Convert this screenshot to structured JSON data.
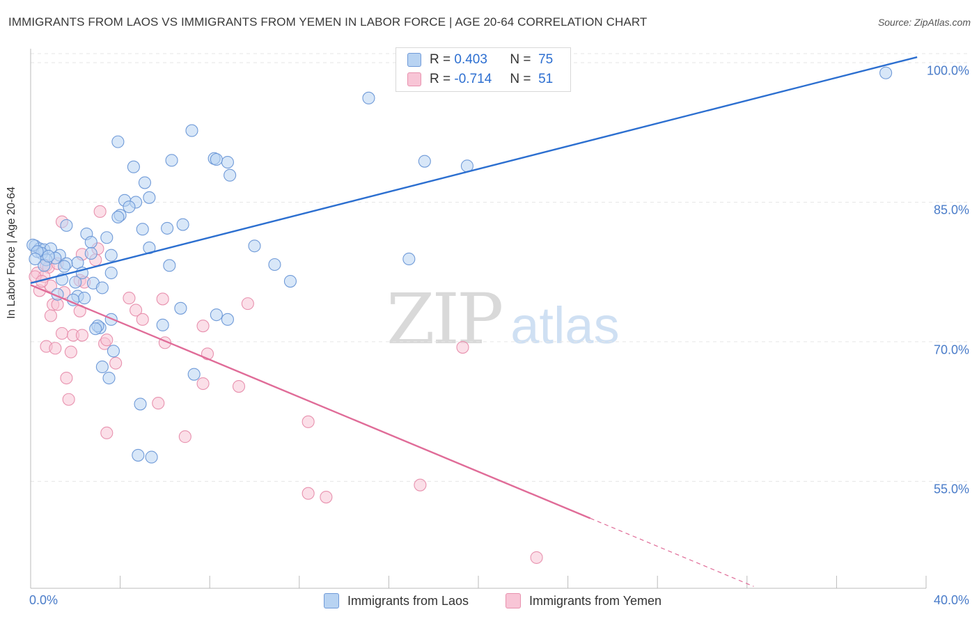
{
  "header": {
    "title": "IMMIGRANTS FROM LAOS VS IMMIGRANTS FROM YEMEN IN LABOR FORCE | AGE 20-64 CORRELATION CHART",
    "source": "Source: ZipAtlas.com"
  },
  "watermark": {
    "left": "ZIP",
    "right": "atlas"
  },
  "legend": {
    "rows": [
      {
        "r_label": "R =",
        "r_value": "0.403",
        "n_label": "N =",
        "n_value": "75"
      },
      {
        "r_label": "R =",
        "r_value": "-0.714",
        "n_label": "N =",
        "n_value": "51"
      }
    ]
  },
  "colors": {
    "blue_fill": "#b8d3f2",
    "blue_stroke": "#6f9ad8",
    "blue_line": "#2c6fd0",
    "pink_fill": "#f8c5d6",
    "pink_stroke": "#e891ae",
    "pink_line": "#e06c98",
    "grid": "#e6e6e6",
    "tick_text": "#4a7cc9"
  },
  "chart_data": {
    "type": "scatter",
    "title": "IMMIGRANTS FROM LAOS VS IMMIGRANTS FROM YEMEN IN LABOR FORCE | AGE 20-64 CORRELATION CHART",
    "xlabel": "",
    "ylabel": "In Labor Force | Age 20-64",
    "xlim": [
      0,
      40
    ],
    "ylim": [
      43.5,
      101.5
    ],
    "x_tick_labels": [
      "0.0%",
      "40.0%"
    ],
    "y_ticks": [
      55,
      70,
      85,
      100
    ],
    "y_tick_labels": [
      "55.0%",
      "70.0%",
      "85.0%",
      "100.0%"
    ],
    "grid": true,
    "legend_position": "top-center",
    "series": [
      {
        "name": "Immigrants from Laos",
        "color": "#b8d3f2",
        "trend": {
          "x": [
            0,
            39.6
          ],
          "y": [
            76.3,
            100.6
          ],
          "dashed_from": null
        },
        "points": [
          [
            38.2,
            98.9
          ],
          [
            15.1,
            96.2
          ],
          [
            7.2,
            92.7
          ],
          [
            3.9,
            91.5
          ],
          [
            8.2,
            89.7
          ],
          [
            17.6,
            89.4
          ],
          [
            19.5,
            88.9
          ],
          [
            6.3,
            89.5
          ],
          [
            4.6,
            88.8
          ],
          [
            8.8,
            89.3
          ],
          [
            8.3,
            89.6
          ],
          [
            5.1,
            87.1
          ],
          [
            8.9,
            87.9
          ],
          [
            5.3,
            85.5
          ],
          [
            4.2,
            85.2
          ],
          [
            4.7,
            85.0
          ],
          [
            4.4,
            84.5
          ],
          [
            4.0,
            83.6
          ],
          [
            3.9,
            83.4
          ],
          [
            6.8,
            82.6
          ],
          [
            6.1,
            82.2
          ],
          [
            5.0,
            82.1
          ],
          [
            1.6,
            82.5
          ],
          [
            2.5,
            81.6
          ],
          [
            3.4,
            81.2
          ],
          [
            2.7,
            80.7
          ],
          [
            10.0,
            80.3
          ],
          [
            5.3,
            80.1
          ],
          [
            0.2,
            80.3
          ],
          [
            0.4,
            80.0
          ],
          [
            0.6,
            79.9
          ],
          [
            0.9,
            80.0
          ],
          [
            0.5,
            79.5
          ],
          [
            1.3,
            79.3
          ],
          [
            2.7,
            79.5
          ],
          [
            3.6,
            79.3
          ],
          [
            1.1,
            79.0
          ],
          [
            0.7,
            78.8
          ],
          [
            2.1,
            78.5
          ],
          [
            1.6,
            78.4
          ],
          [
            6.2,
            78.2
          ],
          [
            0.6,
            78.2
          ],
          [
            10.9,
            78.3
          ],
          [
            16.9,
            78.9
          ],
          [
            3.6,
            77.4
          ],
          [
            2.3,
            77.4
          ],
          [
            1.4,
            76.7
          ],
          [
            2.0,
            76.4
          ],
          [
            2.8,
            76.3
          ],
          [
            11.6,
            76.5
          ],
          [
            3.2,
            75.8
          ],
          [
            1.2,
            75.1
          ],
          [
            2.1,
            74.9
          ],
          [
            2.4,
            74.7
          ],
          [
            1.9,
            74.5
          ],
          [
            6.7,
            73.6
          ],
          [
            8.3,
            72.9
          ],
          [
            8.8,
            72.4
          ],
          [
            3.6,
            72.4
          ],
          [
            3.1,
            71.5
          ],
          [
            3.0,
            71.7
          ],
          [
            2.9,
            71.4
          ],
          [
            5.9,
            71.8
          ],
          [
            3.7,
            69.0
          ],
          [
            3.2,
            67.3
          ],
          [
            3.5,
            66.1
          ],
          [
            7.3,
            66.5
          ],
          [
            4.9,
            63.3
          ],
          [
            4.8,
            57.8
          ],
          [
            5.4,
            57.6
          ],
          [
            0.1,
            80.4
          ],
          [
            0.3,
            79.7
          ],
          [
            0.8,
            79.2
          ],
          [
            1.5,
            78.1
          ],
          [
            0.2,
            78.9
          ]
        ]
      },
      {
        "name": "Immigrants from Yemen",
        "color": "#f8c5d6",
        "trend": {
          "x": [
            0,
            32.3
          ],
          "y": [
            76.1,
            43.7
          ],
          "dashed_from": 25.0
        },
        "points": [
          [
            3.1,
            84.0
          ],
          [
            1.4,
            82.9
          ],
          [
            3.0,
            80.0
          ],
          [
            2.9,
            78.8
          ],
          [
            0.7,
            78.2
          ],
          [
            0.8,
            78.0
          ],
          [
            1.2,
            78.4
          ],
          [
            0.3,
            77.4
          ],
          [
            0.6,
            77.0
          ],
          [
            2.3,
            79.4
          ],
          [
            2.2,
            76.6
          ],
          [
            2.4,
            76.4
          ],
          [
            0.9,
            76.0
          ],
          [
            0.4,
            75.5
          ],
          [
            1.5,
            75.3
          ],
          [
            4.4,
            74.7
          ],
          [
            5.9,
            74.6
          ],
          [
            1.0,
            74.0
          ],
          [
            1.2,
            74.0
          ],
          [
            9.7,
            74.1
          ],
          [
            2.2,
            73.3
          ],
          [
            4.7,
            73.4
          ],
          [
            5.0,
            72.4
          ],
          [
            0.9,
            72.8
          ],
          [
            7.7,
            71.7
          ],
          [
            1.4,
            70.9
          ],
          [
            1.9,
            70.7
          ],
          [
            2.3,
            70.7
          ],
          [
            6.0,
            69.9
          ],
          [
            3.3,
            69.8
          ],
          [
            3.4,
            70.2
          ],
          [
            0.7,
            69.5
          ],
          [
            1.1,
            69.3
          ],
          [
            1.8,
            68.9
          ],
          [
            7.9,
            68.7
          ],
          [
            19.3,
            69.4
          ],
          [
            3.8,
            67.7
          ],
          [
            1.6,
            66.1
          ],
          [
            7.7,
            65.5
          ],
          [
            9.3,
            65.2
          ],
          [
            1.7,
            63.8
          ],
          [
            5.7,
            63.4
          ],
          [
            12.4,
            61.4
          ],
          [
            3.4,
            60.2
          ],
          [
            6.9,
            59.8
          ],
          [
            17.4,
            54.6
          ],
          [
            12.4,
            53.7
          ],
          [
            13.2,
            53.3
          ],
          [
            22.6,
            46.8
          ],
          [
            0.2,
            77.0
          ],
          [
            0.5,
            76.5
          ]
        ]
      }
    ]
  }
}
